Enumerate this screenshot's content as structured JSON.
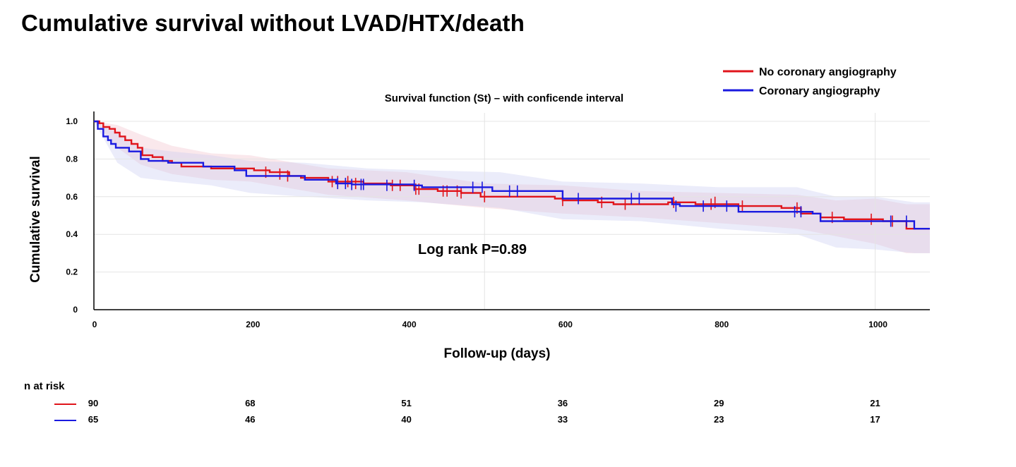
{
  "page_title": "Cumulative survival without LVAD/HTX/death",
  "chart_data": {
    "type": "line",
    "subtitle": "Survival function (St) – with conficende interval",
    "xlabel": "Follow-up (days)",
    "ylabel": "Cumulative survival",
    "xlim": [
      0,
      1070
    ],
    "ylim": [
      0,
      1.0
    ],
    "x_ticks": [
      "0",
      "200",
      "400",
      "600",
      "800",
      "1000"
    ],
    "x_tick_values": [
      0,
      200,
      400,
      600,
      800,
      1000
    ],
    "y_ticks": [
      "0",
      "0.2",
      "0.4",
      "0.6",
      "0.8",
      "1.0"
    ],
    "y_tick_values": [
      0,
      0.2,
      0.4,
      0.6,
      0.8,
      1.0
    ],
    "grid_x_values": [
      500,
      1000
    ],
    "grid": true,
    "legend_position": "top-right",
    "annotation": "Log rank P=0.89",
    "series": [
      {
        "name": "No coronary angiography",
        "color": "#e0141b",
        "band_color": "#f0bcc8",
        "steps": [
          [
            0,
            1.0
          ],
          [
            7,
            0.99
          ],
          [
            12,
            0.97
          ],
          [
            20,
            0.96
          ],
          [
            27,
            0.94
          ],
          [
            33,
            0.92
          ],
          [
            40,
            0.9
          ],
          [
            48,
            0.88
          ],
          [
            56,
            0.86
          ],
          [
            62,
            0.82
          ],
          [
            75,
            0.81
          ],
          [
            88,
            0.79
          ],
          [
            100,
            0.78
          ],
          [
            112,
            0.76
          ],
          [
            150,
            0.75
          ],
          [
            190,
            0.75
          ],
          [
            205,
            0.74
          ],
          [
            225,
            0.73
          ],
          [
            250,
            0.71
          ],
          [
            265,
            0.7
          ],
          [
            300,
            0.68
          ],
          [
            345,
            0.67
          ],
          [
            380,
            0.66
          ],
          [
            410,
            0.64
          ],
          [
            440,
            0.63
          ],
          [
            470,
            0.62
          ],
          [
            495,
            0.6
          ],
          [
            590,
            0.59
          ],
          [
            600,
            0.58
          ],
          [
            645,
            0.57
          ],
          [
            665,
            0.56
          ],
          [
            735,
            0.57
          ],
          [
            770,
            0.56
          ],
          [
            825,
            0.55
          ],
          [
            880,
            0.54
          ],
          [
            905,
            0.51
          ],
          [
            930,
            0.49
          ],
          [
            960,
            0.48
          ],
          [
            1010,
            0.47
          ],
          [
            1040,
            0.43
          ],
          [
            1070,
            0.43
          ]
        ],
        "band_lower": [
          [
            0,
            1.0
          ],
          [
            30,
            0.86
          ],
          [
            60,
            0.77
          ],
          [
            100,
            0.72
          ],
          [
            150,
            0.69
          ],
          [
            200,
            0.68
          ],
          [
            300,
            0.61
          ],
          [
            400,
            0.58
          ],
          [
            500,
            0.54
          ],
          [
            600,
            0.51
          ],
          [
            700,
            0.49
          ],
          [
            800,
            0.46
          ],
          [
            900,
            0.43
          ],
          [
            950,
            0.39
          ],
          [
            1000,
            0.35
          ],
          [
            1040,
            0.3
          ],
          [
            1070,
            0.3
          ]
        ],
        "band_upper": [
          [
            0,
            1.0
          ],
          [
            30,
            0.98
          ],
          [
            60,
            0.93
          ],
          [
            100,
            0.87
          ],
          [
            150,
            0.83
          ],
          [
            200,
            0.82
          ],
          [
            300,
            0.75
          ],
          [
            400,
            0.73
          ],
          [
            500,
            0.67
          ],
          [
            600,
            0.66
          ],
          [
            700,
            0.63
          ],
          [
            800,
            0.62
          ],
          [
            900,
            0.61
          ],
          [
            950,
            0.58
          ],
          [
            1000,
            0.59
          ],
          [
            1040,
            0.56
          ],
          [
            1070,
            0.56
          ]
        ],
        "censors": [
          [
            220,
            0.73
          ],
          [
            238,
            0.72
          ],
          [
            248,
            0.71
          ],
          [
            305,
            0.68
          ],
          [
            312,
            0.68
          ],
          [
            325,
            0.68
          ],
          [
            335,
            0.67
          ],
          [
            382,
            0.66
          ],
          [
            392,
            0.66
          ],
          [
            412,
            0.64
          ],
          [
            416,
            0.64
          ],
          [
            447,
            0.63
          ],
          [
            452,
            0.63
          ],
          [
            465,
            0.63
          ],
          [
            470,
            0.62
          ],
          [
            500,
            0.6
          ],
          [
            600,
            0.58
          ],
          [
            650,
            0.57
          ],
          [
            680,
            0.56
          ],
          [
            742,
            0.57
          ],
          [
            790,
            0.56
          ],
          [
            795,
            0.57
          ],
          [
            830,
            0.55
          ],
          [
            900,
            0.54
          ],
          [
            945,
            0.49
          ],
          [
            995,
            0.48
          ],
          [
            1022,
            0.47
          ]
        ]
      },
      {
        "name": "Coronary angiography",
        "color": "#1a1ae0",
        "band_color": "#c7c8f2",
        "steps": [
          [
            0,
            1.0
          ],
          [
            5,
            0.96
          ],
          [
            12,
            0.92
          ],
          [
            18,
            0.9
          ],
          [
            22,
            0.88
          ],
          [
            28,
            0.86
          ],
          [
            45,
            0.84
          ],
          [
            60,
            0.8
          ],
          [
            70,
            0.79
          ],
          [
            95,
            0.78
          ],
          [
            140,
            0.76
          ],
          [
            180,
            0.74
          ],
          [
            195,
            0.71
          ],
          [
            270,
            0.69
          ],
          [
            310,
            0.67
          ],
          [
            330,
            0.665
          ],
          [
            410,
            0.66
          ],
          [
            420,
            0.65
          ],
          [
            510,
            0.63
          ],
          [
            600,
            0.59
          ],
          [
            690,
            0.59
          ],
          [
            740,
            0.56
          ],
          [
            750,
            0.55
          ],
          [
            825,
            0.52
          ],
          [
            895,
            0.52
          ],
          [
            920,
            0.51
          ],
          [
            930,
            0.47
          ],
          [
            1030,
            0.47
          ],
          [
            1050,
            0.43
          ],
          [
            1070,
            0.43
          ]
        ],
        "band_lower": [
          [
            0,
            1.0
          ],
          [
            30,
            0.78
          ],
          [
            60,
            0.7
          ],
          [
            100,
            0.68
          ],
          [
            150,
            0.66
          ],
          [
            200,
            0.62
          ],
          [
            270,
            0.6
          ],
          [
            350,
            0.58
          ],
          [
            420,
            0.57
          ],
          [
            520,
            0.54
          ],
          [
            600,
            0.48
          ],
          [
            700,
            0.47
          ],
          [
            800,
            0.43
          ],
          [
            900,
            0.4
          ],
          [
            950,
            0.33
          ],
          [
            1000,
            0.32
          ],
          [
            1050,
            0.3
          ],
          [
            1070,
            0.3
          ]
        ],
        "band_upper": [
          [
            0,
            1.0
          ],
          [
            30,
            0.94
          ],
          [
            60,
            0.86
          ],
          [
            100,
            0.84
          ],
          [
            150,
            0.82
          ],
          [
            200,
            0.79
          ],
          [
            270,
            0.78
          ],
          [
            350,
            0.75
          ],
          [
            420,
            0.74
          ],
          [
            520,
            0.73
          ],
          [
            600,
            0.68
          ],
          [
            700,
            0.67
          ],
          [
            800,
            0.65
          ],
          [
            900,
            0.65
          ],
          [
            950,
            0.6
          ],
          [
            1000,
            0.6
          ],
          [
            1050,
            0.57
          ],
          [
            1070,
            0.57
          ]
        ],
        "censors": [
          [
            312,
            0.67
          ],
          [
            322,
            0.67
          ],
          [
            330,
            0.665
          ],
          [
            342,
            0.665
          ],
          [
            345,
            0.665
          ],
          [
            375,
            0.66
          ],
          [
            410,
            0.66
          ],
          [
            485,
            0.65
          ],
          [
            497,
            0.65
          ],
          [
            532,
            0.63
          ],
          [
            542,
            0.63
          ],
          [
            620,
            0.59
          ],
          [
            688,
            0.59
          ],
          [
            698,
            0.59
          ],
          [
            745,
            0.55
          ],
          [
            780,
            0.55
          ],
          [
            810,
            0.55
          ],
          [
            897,
            0.52
          ],
          [
            905,
            0.52
          ],
          [
            1020,
            0.47
          ],
          [
            1040,
            0.47
          ]
        ]
      }
    ]
  },
  "risk_table": {
    "heading": "n at risk",
    "columns_x": [
      0,
      200,
      400,
      600,
      800,
      1000
    ],
    "rows": [
      {
        "color": "#e0141b",
        "values": [
          "90",
          "68",
          "51",
          "36",
          "29",
          "21"
        ]
      },
      {
        "color": "#1a1ae0",
        "values": [
          "65",
          "46",
          "40",
          "33",
          "23",
          "17"
        ]
      }
    ]
  }
}
